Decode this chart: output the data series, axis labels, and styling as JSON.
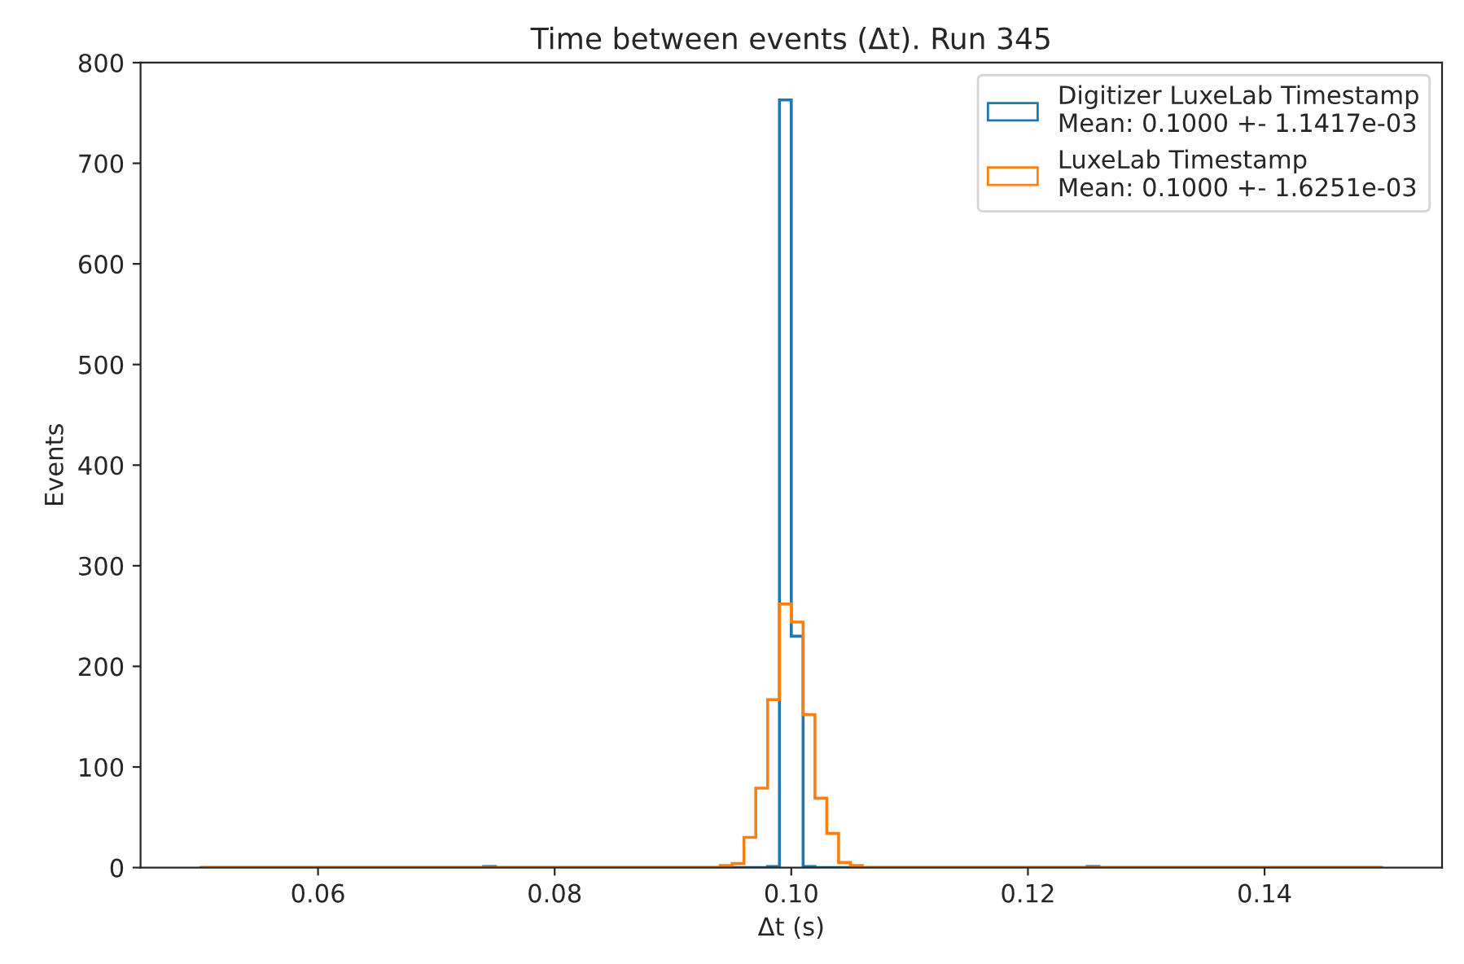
{
  "chart_data": {
    "type": "histogram",
    "title": "Time between events (Δt). Run 345",
    "xlabel": "Δt (s)",
    "ylabel": "Events",
    "bins": [
      0.05,
      0.051,
      0.052,
      0.053,
      0.054,
      0.055,
      0.056,
      0.057,
      0.058,
      0.059,
      0.06,
      0.061,
      0.062,
      0.063,
      0.064,
      0.065,
      0.066,
      0.067,
      0.068,
      0.069,
      0.07,
      0.071,
      0.072,
      0.073,
      0.074,
      0.075,
      0.076,
      0.077,
      0.078,
      0.079,
      0.08,
      0.081,
      0.082,
      0.083,
      0.084,
      0.085,
      0.086,
      0.087,
      0.088,
      0.089,
      0.09,
      0.091,
      0.092,
      0.093,
      0.094,
      0.095,
      0.096,
      0.097,
      0.098,
      0.099,
      0.1,
      0.101,
      0.102,
      0.103,
      0.104,
      0.105,
      0.106,
      0.107,
      0.108,
      0.109,
      0.11,
      0.111,
      0.112,
      0.113,
      0.114,
      0.115,
      0.116,
      0.117,
      0.118,
      0.119,
      0.12,
      0.121,
      0.122,
      0.123,
      0.124,
      0.125,
      0.126,
      0.127,
      0.128,
      0.129,
      0.13,
      0.131,
      0.132,
      0.133,
      0.134,
      0.135,
      0.136,
      0.137,
      0.138,
      0.139,
      0.14,
      0.141,
      0.142,
      0.143,
      0.144,
      0.145,
      0.146,
      0.147,
      0.148,
      0.149,
      0.15
    ],
    "series": [
      {
        "name": "Digitizer LuxeLab Timestamp\nMean: 0.1000 +- 1.1417e-03",
        "color": "#1f77b4",
        "values": [
          0,
          0,
          0,
          0,
          0,
          0,
          0,
          0,
          0,
          0,
          0,
          0,
          0,
          0,
          0,
          0,
          0,
          0,
          0,
          0,
          0,
          0,
          0,
          0,
          1,
          0,
          0,
          0,
          0,
          0,
          0,
          0,
          0,
          0,
          0,
          0,
          0,
          0,
          0,
          0,
          0,
          0,
          0,
          0,
          0,
          0,
          0,
          0,
          1,
          763,
          230,
          1,
          0,
          0,
          0,
          0,
          0,
          0,
          0,
          0,
          0,
          0,
          0,
          0,
          0,
          0,
          0,
          0,
          0,
          0,
          0,
          0,
          0,
          0,
          0,
          1,
          0,
          0,
          0,
          0,
          0,
          0,
          0,
          0,
          0,
          0,
          0,
          0,
          0,
          0,
          0,
          0,
          0,
          0,
          0,
          0,
          0,
          0,
          0,
          0
        ]
      },
      {
        "name": "LuxeLab Timestamp\nMean: 0.1000 +- 1.6251e-03",
        "color": "#ff7f0e",
        "values": [
          0,
          0,
          0,
          0,
          0,
          0,
          0,
          0,
          0,
          0,
          0,
          0,
          0,
          0,
          0,
          0,
          0,
          0,
          0,
          0,
          0,
          0,
          0,
          0,
          0,
          0,
          0,
          0,
          0,
          0,
          0,
          0,
          0,
          0,
          0,
          0,
          0,
          0,
          0,
          0,
          0,
          0,
          0,
          0,
          2,
          4,
          30,
          79,
          167,
          262,
          244,
          152,
          69,
          34,
          5,
          2,
          0,
          0,
          0,
          0,
          0,
          0,
          0,
          0,
          0,
          0,
          0,
          0,
          0,
          0,
          0,
          0,
          0,
          0,
          0,
          0,
          0,
          0,
          0,
          0,
          0,
          0,
          0,
          0,
          0,
          0,
          0,
          0,
          0,
          0,
          0,
          0,
          0,
          0,
          0,
          0,
          0,
          0,
          0,
          0
        ]
      }
    ],
    "xlim": [
      0.045,
      0.155
    ],
    "xticks": [
      {
        "value": 0.06,
        "label": "0.06"
      },
      {
        "value": 0.08,
        "label": "0.08"
      },
      {
        "value": 0.1,
        "label": "0.10"
      },
      {
        "value": 0.12,
        "label": "0.12"
      },
      {
        "value": 0.14,
        "label": "0.14"
      }
    ],
    "ylim": [
      0,
      800
    ],
    "yticks": [
      0,
      100,
      200,
      300,
      400,
      500,
      600,
      700,
      800
    ],
    "grid": false,
    "legend": "top right"
  }
}
